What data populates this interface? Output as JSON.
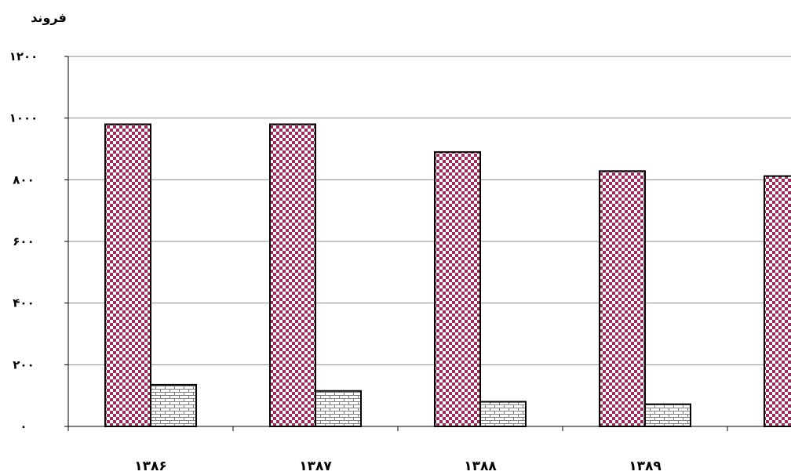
{
  "chart_data": {
    "type": "bar",
    "ylabel": "فروند",
    "ylim": [
      0,
      1200
    ],
    "yticks": [
      0,
      200,
      400,
      600,
      800,
      1000,
      1200
    ],
    "ytick_labels": [
      "۰",
      "۲۰۰",
      "۴۰۰",
      "۶۰۰",
      "۸۰۰",
      "۱۰۰۰",
      "۱۲۰۰"
    ],
    "categories": [
      "۱۳۸۶",
      "۱۳۸۷",
      "۱۳۸۸",
      "۱۳۸۹",
      ""
    ],
    "grid": true,
    "series": [
      {
        "pattern": "checker",
        "color": "#9c2a5e",
        "values": [
          980,
          980,
          890,
          828,
          812
        ]
      },
      {
        "pattern": "brick",
        "color": "#808080",
        "values": [
          135,
          115,
          80,
          72,
          null
        ]
      }
    ]
  }
}
